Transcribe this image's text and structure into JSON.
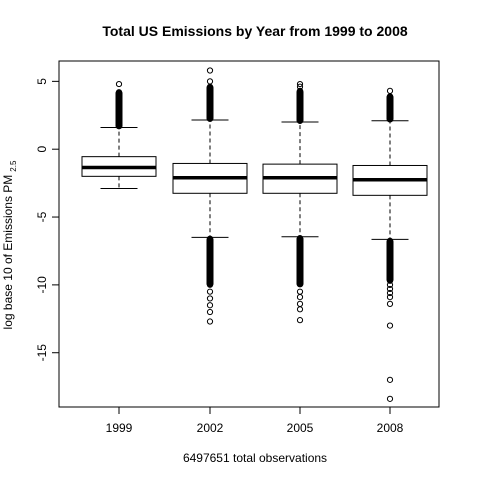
{
  "chart_data": {
    "type": "boxplot",
    "title": "Total US Emissions by Year from 1999 to 2008",
    "xlabel": "6497651 total observations",
    "ylabel_main": "log base 10 of Emissions PM",
    "ylabel_subscript": "2.5",
    "categories": [
      "1999",
      "2002",
      "2005",
      "2008"
    ],
    "ylim": [
      -19,
      6.5
    ],
    "yticks": [
      5,
      0,
      -5,
      -10,
      -15
    ],
    "ytick_labels": [
      "5",
      "0",
      "-5",
      "-10",
      "-15"
    ],
    "grid": false,
    "legend": "none",
    "boxes": [
      {
        "category": "1999",
        "whisker_low": -2.9,
        "q1": -2.0,
        "median": -1.35,
        "q3": -0.55,
        "whisker_high": 1.6,
        "outliers_high_band": [
          1.65,
          4.2
        ],
        "outliers_high": [
          4.8
        ],
        "outliers_low_band": null,
        "outliers_low": []
      },
      {
        "category": "2002",
        "whisker_low": -6.5,
        "q1": -3.25,
        "median": -2.1,
        "q3": -1.05,
        "whisker_high": 2.15,
        "outliers_high_band": [
          2.2,
          4.6
        ],
        "outliers_high": [
          5.0,
          5.8
        ],
        "outliers_low_band": [
          -10.0,
          -6.6
        ],
        "outliers_low": [
          -10.5,
          -11.0,
          -11.5,
          -12.0,
          -12.7
        ]
      },
      {
        "category": "2005",
        "whisker_low": -6.45,
        "q1": -3.25,
        "median": -2.1,
        "q3": -1.1,
        "whisker_high": 2.0,
        "outliers_high_band": [
          2.05,
          4.3
        ],
        "outliers_high": [
          4.6,
          4.8
        ],
        "outliers_low_band": [
          -10.0,
          -6.55
        ],
        "outliers_low": [
          -10.5,
          -10.9,
          -11.4,
          -11.8,
          -12.6
        ]
      },
      {
        "category": "2008",
        "whisker_low": -6.65,
        "q1": -3.4,
        "median": -2.25,
        "q3": -1.2,
        "whisker_high": 2.1,
        "outliers_high_band": [
          2.15,
          3.9
        ],
        "outliers_high": [
          4.3
        ],
        "outliers_low_band": [
          -9.7,
          -6.75
        ],
        "outliers_low": [
          -10.0,
          -10.3,
          -10.6,
          -10.9,
          -11.4,
          -13.0,
          -17.0,
          -18.4
        ]
      }
    ]
  }
}
